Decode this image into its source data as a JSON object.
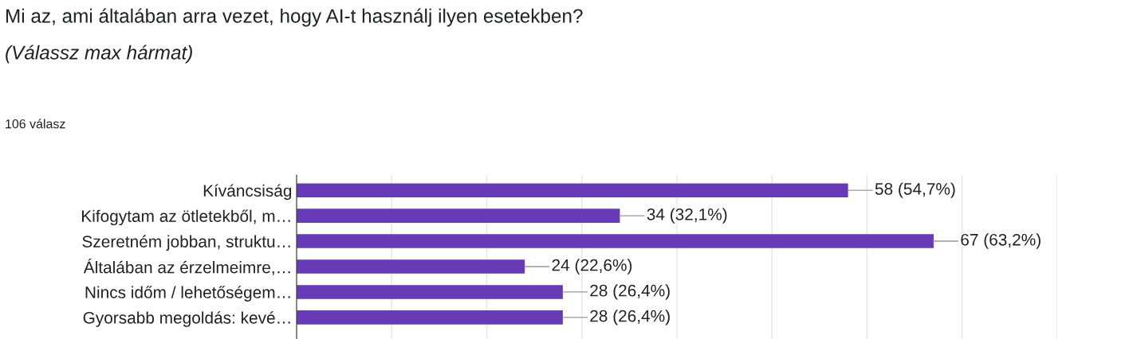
{
  "chart_data": {
    "type": "bar",
    "orientation": "horizontal",
    "title": "Mi az, ami általában arra vezet, hogy AI-t használj ilyen esetekben?",
    "subtitle": "(Válassz max hármat)",
    "annotations": [
      "106 válasz"
    ],
    "categories": [
      "Kíváncsiság",
      "Kifogytam az ötletekből, m…",
      "Szeretném jobban, struktu…",
      "Általában az érzelmeimre,…",
      "Nincs időm / lehetőségem…",
      "Gyorsabb megoldás: kevé…"
    ],
    "values": [
      58,
      34,
      67,
      24,
      28,
      28
    ],
    "color": "#673ab7",
    "value_labels": [
      "58 (54,7%)",
      "34 (32,1%)",
      "67 (63,2%)",
      "24 (22,6%)",
      "28 (26,4%)",
      "28 (26,4%)"
    ],
    "xlim": [
      0,
      80
    ],
    "xticks": [
      {
        "value": 0,
        "label": null
      },
      {
        "value": 10,
        "label": null
      },
      {
        "value": 20,
        "label": null
      },
      {
        "value": 30,
        "label": null
      },
      {
        "value": 40,
        "label": null
      },
      {
        "value": 50,
        "label": null
      },
      {
        "value": 60,
        "label": null
      },
      {
        "value": 70,
        "label": null
      },
      {
        "value": 80,
        "label": null
      }
    ],
    "grid": "x",
    "tick_labels": "y"
  }
}
